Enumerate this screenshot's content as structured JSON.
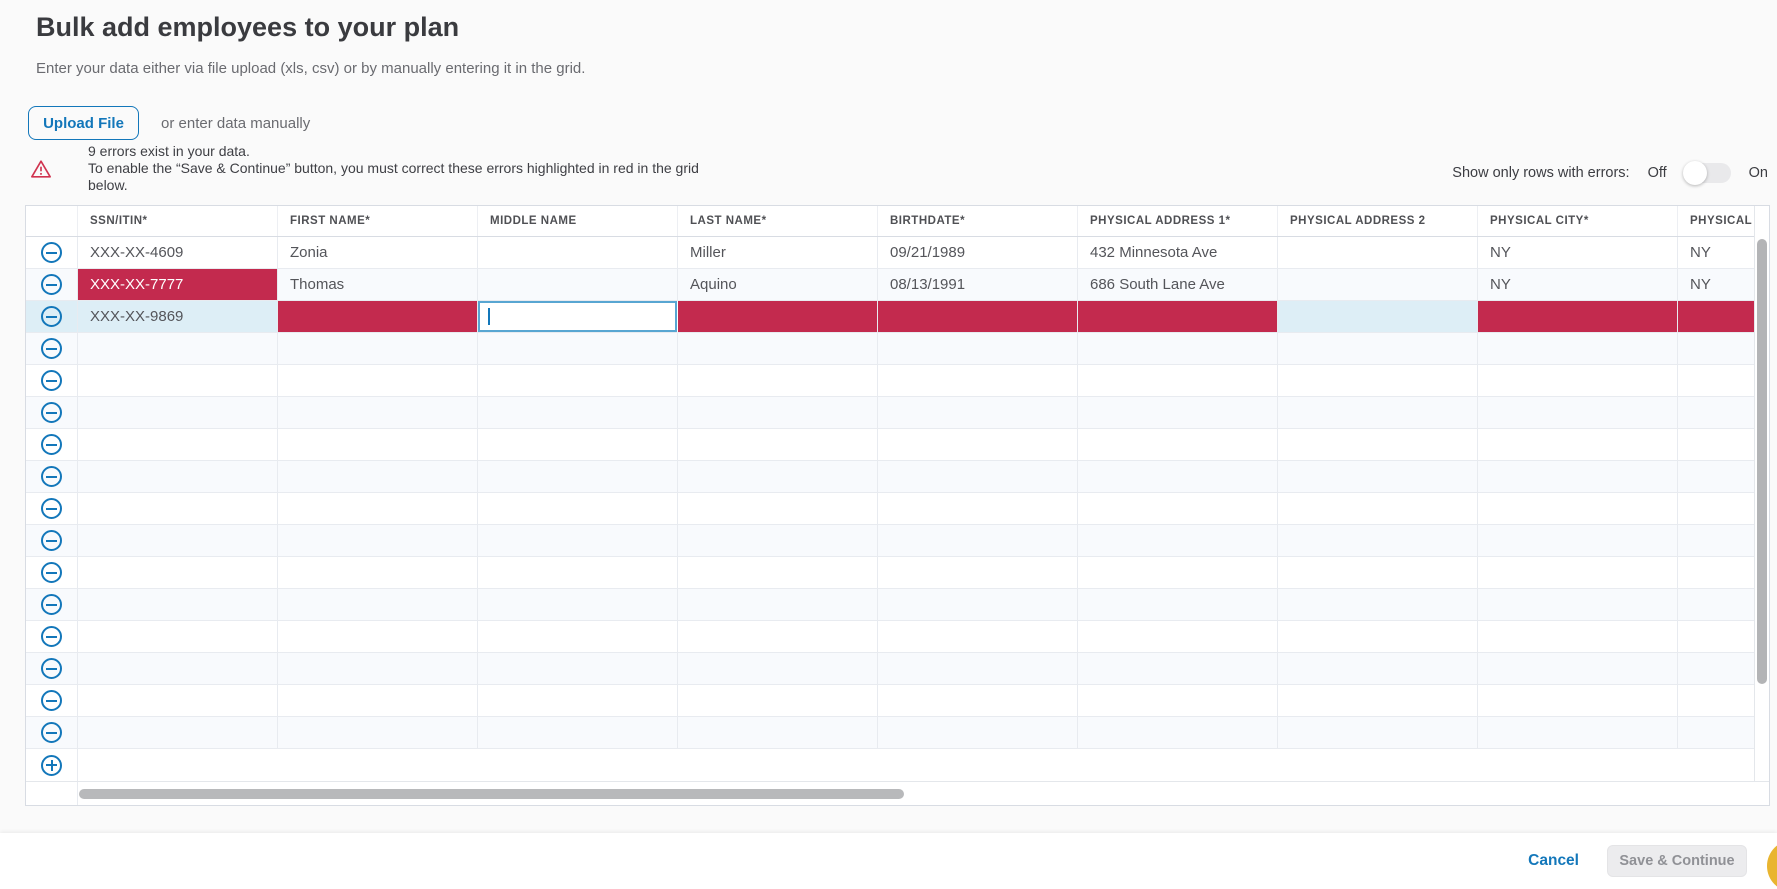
{
  "page": {
    "title": "Bulk add employees to your plan",
    "subtitle": "Enter your data either via file upload (xls, csv) or by manually entering it in the grid.",
    "upload_button_label": "Upload File",
    "manual_hint": "or enter data manually"
  },
  "error_banner": {
    "icon": "warning-triangle-icon",
    "summary": "9 errors exist in your data.",
    "detail": "To enable the “Save & Continue” button, you must correct these errors highlighted in red in the grid below."
  },
  "error_toggle": {
    "label": "Show only rows with errors:",
    "off_label": "Off",
    "on_label": "On",
    "state": "off"
  },
  "grid": {
    "columns": [
      "SSN/ITIN*",
      "FIRST NAME*",
      "MIDDLE NAME",
      "LAST NAME*",
      "BIRTHDATE*",
      "PHYSICAL ADDRESS 1*",
      "PHYSICAL ADDRESS 2",
      "PHYSICAL CITY*",
      "PHYSICAL STATE*"
    ],
    "column_keys": [
      "ssn-itin",
      "first-name",
      "middle-name",
      "last-name",
      "birthdate",
      "physical-address-1",
      "physical-address-2",
      "physical-city",
      "physical-state"
    ],
    "row_icons": {
      "remove": "minus-circle-icon",
      "add": "plus-circle-icon"
    },
    "rows": [
      {
        "cells": [
          {
            "v": "XXX-XX-4609"
          },
          {
            "v": "Zonia"
          },
          {
            "v": ""
          },
          {
            "v": "Miller"
          },
          {
            "v": "09/21/1989"
          },
          {
            "v": "432 Minnesota Ave"
          },
          {
            "v": ""
          },
          {
            "v": "NY"
          },
          {
            "v": "NY"
          }
        ]
      },
      {
        "cells": [
          {
            "v": "XXX-XX-7777",
            "s": "error-filled"
          },
          {
            "v": "Thomas"
          },
          {
            "v": ""
          },
          {
            "v": "Aquino"
          },
          {
            "v": "08/13/1991"
          },
          {
            "v": "686 South Lane Ave"
          },
          {
            "v": ""
          },
          {
            "v": "NY"
          },
          {
            "v": "NY"
          }
        ]
      },
      {
        "selected": true,
        "cells": [
          {
            "v": "XXX-XX-9869",
            "s": "selected"
          },
          {
            "v": "",
            "s": "error"
          },
          {
            "v": "",
            "s": "editing"
          },
          {
            "v": "",
            "s": "error"
          },
          {
            "v": "",
            "s": "error"
          },
          {
            "v": "",
            "s": "error"
          },
          {
            "v": "",
            "s": "selected"
          },
          {
            "v": "",
            "s": "error"
          },
          {
            "v": "",
            "s": "error"
          }
        ]
      }
    ],
    "empty_row_count": 13
  },
  "footer": {
    "cancel_label": "Cancel",
    "save_label": "Save & Continue",
    "chat_widget_icon": "chat-widget"
  },
  "colors": {
    "accent_blue": "#1377ba",
    "error_red": "#c32a4e",
    "selected_cell_blue": "#ddeef6",
    "row_stripe": "#f8fafd",
    "disabled_button_gray": "#ececee",
    "chat_gold": "#e9b530"
  }
}
